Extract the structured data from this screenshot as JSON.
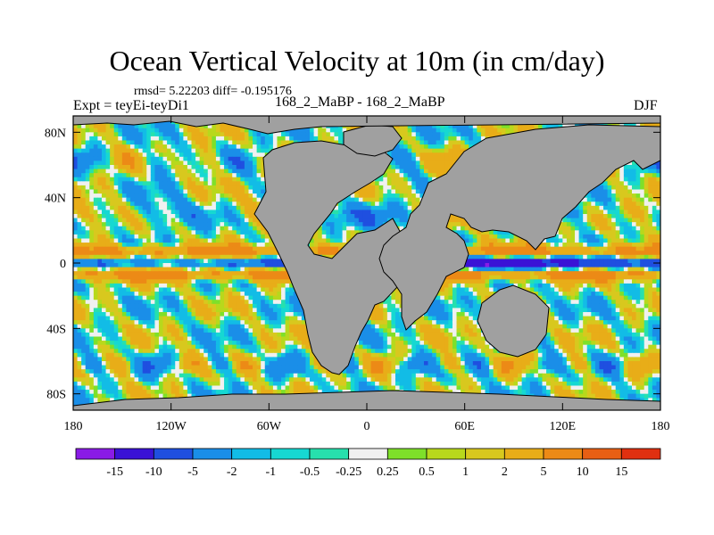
{
  "title": "Ocean Vertical Velocity at 10m (in cm/day)",
  "stats": "rmsd= 5.22203 diff= -0.195176",
  "experiment": "Expt = teyEi-teyDi1",
  "subtitle": "168_2_MaBP - 168_2_MaBP",
  "season": "DJF",
  "colors": {
    "land": "#a0a0a0",
    "coastline": "#000000",
    "scale": [
      "#8a1be6",
      "#3a12d6",
      "#1f4fe0",
      "#1a8ee8",
      "#12bce6",
      "#16d8d2",
      "#27e0ad",
      "#f0f0f0",
      "#7ee02a",
      "#b8d81c",
      "#d8c81e",
      "#e8ad18",
      "#ec8a16",
      "#e85f14",
      "#e03010"
    ]
  },
  "chart_data": {
    "type": "heatmap",
    "title": "Ocean Vertical Velocity at 10m (in cm/day)",
    "x_axis": {
      "range": [
        -180,
        180
      ],
      "ticks": [
        "180",
        "120W",
        "60W",
        "0",
        "60E",
        "120E",
        "180"
      ]
    },
    "y_axis": {
      "range": [
        -90,
        90
      ],
      "ticks": [
        "80N",
        "40N",
        "0",
        "40S",
        "80S"
      ]
    },
    "colorbar": {
      "levels": [
        "-15",
        "-10",
        "-5",
        "-2",
        "-1",
        "-0.5",
        "-0.25",
        "0.25",
        "0.5",
        "1",
        "2",
        "5",
        "10",
        "15"
      ],
      "orientation": "horizontal"
    },
    "units": "cm/day"
  }
}
